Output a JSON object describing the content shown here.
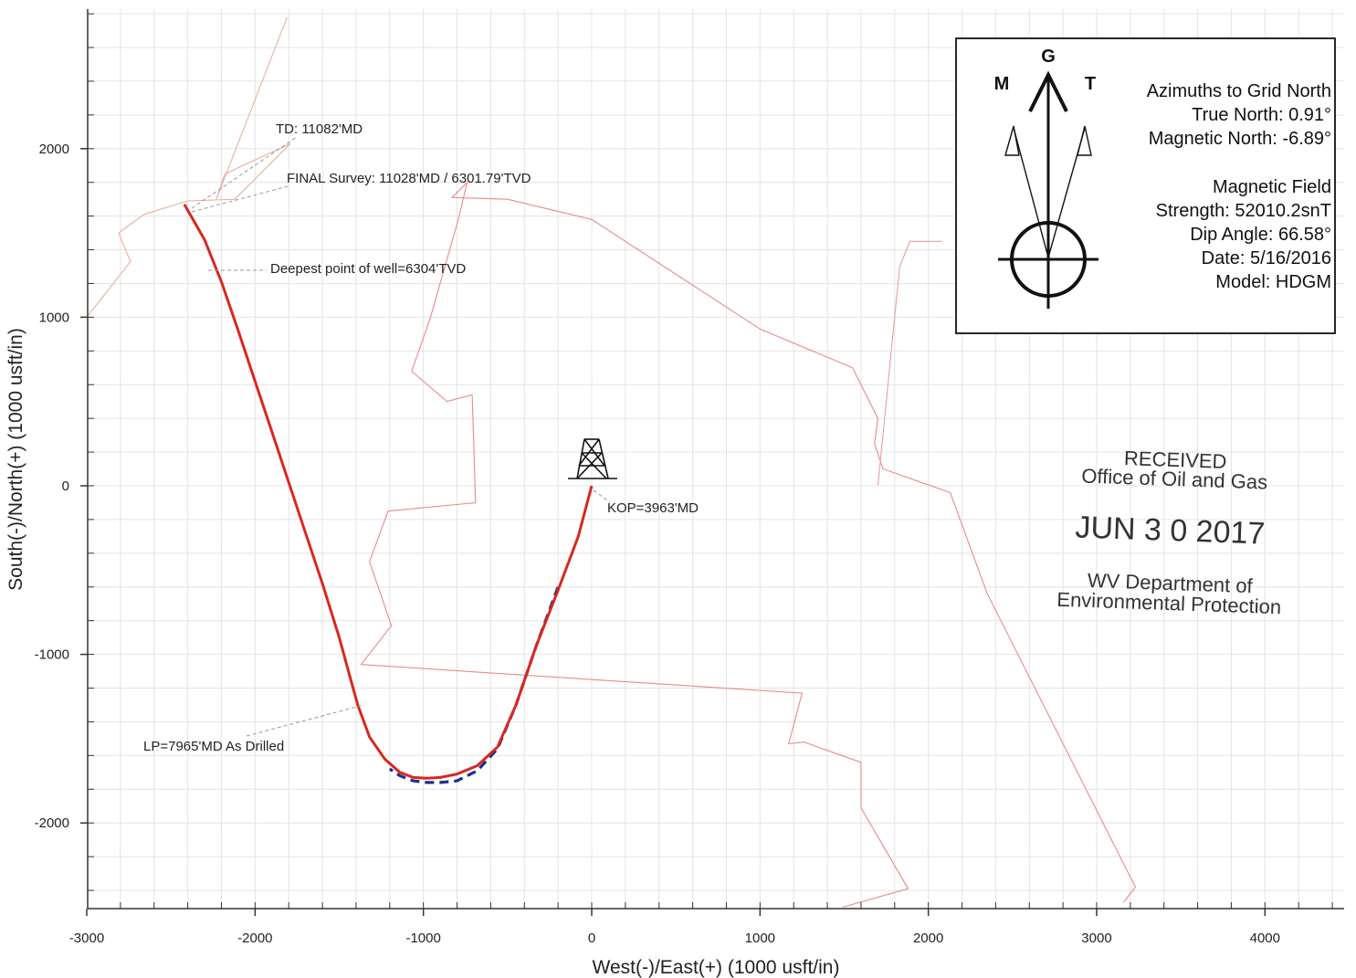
{
  "chart_data": {
    "type": "line",
    "xlabel": "West(-)/East(+) (1000 usft/in)",
    "ylabel": "South(-)/North(+) (1000 usft/in)",
    "xlim": [
      -3000,
      4500
    ],
    "ylim": [
      -2500,
      2800
    ],
    "x_ticks": [
      -3000,
      -2000,
      -1000,
      0,
      1000,
      2000,
      3000,
      4000
    ],
    "y_ticks": [
      -2000,
      -1000,
      0,
      1000,
      2000
    ],
    "x_tick_labels": [
      "-3000",
      "-2000",
      "-1000",
      "0",
      "1000",
      "2000",
      "3000",
      "4000"
    ],
    "y_tick_labels": [
      "-2000",
      "-1000",
      "0",
      "1000",
      "2000"
    ],
    "grid": true,
    "series": [
      {
        "color": "#d8281e",
        "style": "solid",
        "x": [
          0,
          -80,
          -200,
          -330,
          -450,
          -560,
          -680,
          -800,
          -900,
          -980,
          -1060,
          -1140,
          -1230,
          -1320,
          -1390,
          -1440,
          -1500,
          -1600,
          -1700,
          -1800,
          -1900,
          -2000,
          -2100,
          -2200,
          -2300,
          -2420
        ],
        "y": [
          0,
          -300,
          -620,
          -950,
          -1300,
          -1550,
          -1660,
          -1710,
          -1730,
          -1735,
          -1730,
          -1700,
          -1620,
          -1490,
          -1300,
          -1120,
          -900,
          -580,
          -280,
          20,
          320,
          620,
          920,
          1210,
          1460,
          1670
        ]
      },
      {
        "color": "#1a2f8f",
        "style": "dashed",
        "x": [
          -200,
          -330,
          -450,
          -560,
          -680,
          -800,
          -900,
          -980,
          -1060,
          -1140,
          -1200
        ],
        "y": [
          -600,
          -950,
          -1300,
          -1560,
          -1690,
          -1750,
          -1760,
          -1760,
          -1750,
          -1720,
          -1680
        ]
      },
      {
        "color": "#e88a8a",
        "style": "solid",
        "x": [
          1490,
          1880,
          1600,
          1600,
          1260,
          1170,
          1250,
          -1370,
          -1190,
          -1320,
          -1210,
          -690,
          -710,
          -860,
          -1070,
          -960,
          -790,
          -740,
          -830,
          -500,
          0,
          1000,
          1550,
          1700,
          1680,
          1730,
          2130,
          2350,
          3230,
          3160
        ],
        "y": [
          -2500,
          -2390,
          -1910,
          -1640,
          -1520,
          -1530,
          -1230,
          -1060,
          -830,
          -450,
          -150,
          -100,
          540,
          500,
          680,
          990,
          1590,
          1800,
          1710,
          1700,
          1580,
          930,
          700,
          400,
          250,
          100,
          -40,
          -640,
          -2380,
          -2470
        ]
      },
      {
        "color": "#e8b0a0",
        "style": "solid",
        "x": [
          -3000,
          -2740,
          -2810,
          -2660,
          -2400,
          -2120,
          -1790,
          -2180,
          -2230,
          -1810
        ],
        "y": [
          1000,
          1330,
          1500,
          1610,
          1690,
          1700,
          2030,
          1850,
          1700,
          2780
        ]
      },
      {
        "color": "#e8a0a0",
        "style": "solid",
        "x": [
          1700,
          1830,
          1890,
          2000,
          2080
        ],
        "y": [
          0,
          1300,
          1450,
          1450,
          1450
        ]
      }
    ],
    "annotations": [
      {
        "text": "TD: 11082'MD"
      },
      {
        "text": "FINAL Survey: 11028'MD / 6301.79'TVD"
      },
      {
        "text": "Deepest point of well=6304'TVD"
      },
      {
        "text": "KOP=3963'MD"
      },
      {
        "text": "LP=7965'MD As Drilled"
      }
    ],
    "legend": {
      "letters": {
        "magnetic": "M",
        "grid": "G",
        "true": "T"
      },
      "lines": [
        "Azimuths to Grid North",
        "True North: 0.91°",
        "Magnetic North: -6.89°",
        "Magnetic Field",
        "Strength: 52010.2snT",
        "Dip Angle: 66.58°",
        "Date: 5/16/2016",
        "Model: HDGM"
      ]
    },
    "stamp": {
      "line1": "RECEIVED",
      "line2": "Office of Oil and Gas",
      "date": "JUN 3 0 2017",
      "line3": "WV Department of",
      "line4": "Environmental Protection"
    }
  }
}
